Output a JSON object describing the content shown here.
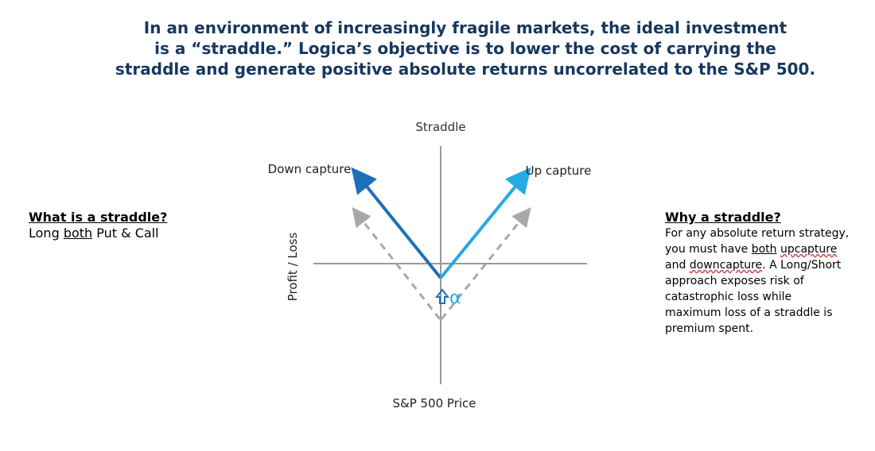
{
  "headline": {
    "line1": "In an environment of increasingly fragile markets, the ideal investment",
    "line2": "is a “straddle.”  Logica’s objective is to lower the cost of carrying the",
    "line3": "straddle and generate positive absolute returns uncorrelated to the S&P 500."
  },
  "diagram": {
    "top_label": "Straddle",
    "down_capture_label": "Down capture",
    "up_capture_label": "Up capture",
    "y_axis_label": "Profit / Loss",
    "x_axis_label": "S&P 500 Price",
    "alpha_symbol": "α",
    "colors": {
      "axis": "#9a9a9a",
      "down_line": "#1f6fb8",
      "up_line": "#27a9e1",
      "dashed": "#a8a8a8",
      "alpha_arrow": "#1f6fb8",
      "alpha_text": "#27a9e1"
    }
  },
  "left_panel": {
    "title": "What is a straddle?",
    "text_prefix": "Long ",
    "text_underlined": "both",
    "text_suffix": " Put & Call"
  },
  "right_panel": {
    "title": "Why a straddle?",
    "line1": "For any absolute return strategy,",
    "line2_prefix": "you must have ",
    "line2_both": "both",
    "line2_space": " ",
    "line2_upcapture": "upcapture",
    "line3_prefix": "and ",
    "line3_downcapture": "downcapture",
    "line3_suffix": ".  A Long/Short",
    "line4": "approach exposes risk of",
    "line5": "catastrophic loss while",
    "line6": "maximum loss of a straddle is",
    "line7": "premium spent."
  }
}
